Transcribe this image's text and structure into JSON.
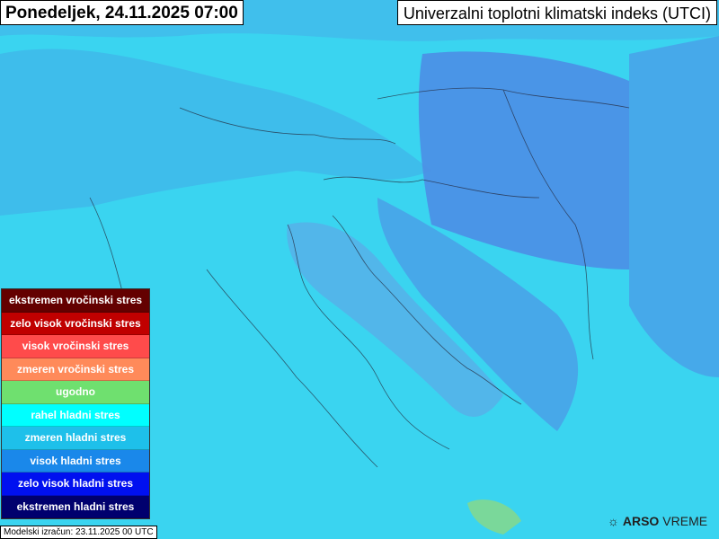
{
  "header": {
    "date_title": "Ponedeljek, 24.11.2025 07:00",
    "index_title": "Univerzalni toplotni klimatski indeks (UTCI)"
  },
  "legend": [
    {
      "label": "ekstremen vročinski stres",
      "color": "#640000"
    },
    {
      "label": "zelo visok vročinski stres",
      "color": "#c00000"
    },
    {
      "label": "visok vročinski stres",
      "color": "#ff4b4b"
    },
    {
      "label": "zmeren vročinski stres",
      "color": "#ff8a5a"
    },
    {
      "label": "ugodno",
      "color": "#6fe06f"
    },
    {
      "label": "rahel hladni stres",
      "color": "#00ffff"
    },
    {
      "label": "zmeren hladni stres",
      "color": "#1ec0ea"
    },
    {
      "label": "visok hladni stres",
      "color": "#1a88ea"
    },
    {
      "label": "zelo visok hladni stres",
      "color": "#0010f0"
    },
    {
      "label": "ekstremen hladni stres",
      "color": "#00006e"
    }
  ],
  "footer": {
    "model_run": "Modelski izračun: 23.11.2025 00 UTC"
  },
  "logo": {
    "brand": "ARSO",
    "suffix": "VREME"
  }
}
